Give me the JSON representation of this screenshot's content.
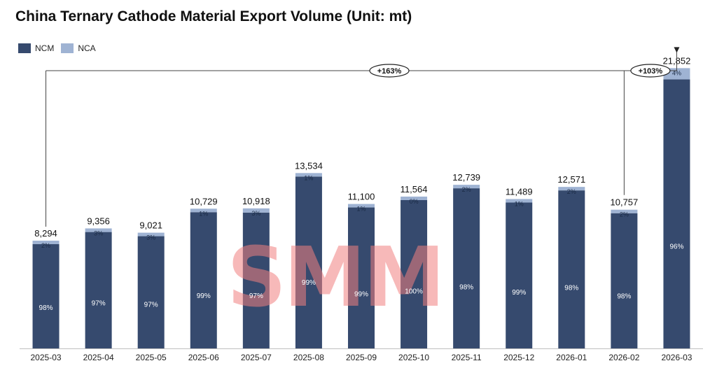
{
  "colors": {
    "ncm": "#364a6e",
    "nca": "#9fb3d3",
    "watermark": "#f08080"
  },
  "watermark": {
    "text": "SMM"
  },
  "chart_data": {
    "type": "bar",
    "stacked": true,
    "title": "China Ternary Cathode Material Export Volume (Unit: mt)",
    "legend_position": "top-left",
    "grid": false,
    "categories": [
      "2025-03",
      "2025-04",
      "2025-05",
      "2025-06",
      "2025-07",
      "2025-08",
      "2025-09",
      "2025-10",
      "2025-11",
      "2025-12",
      "2026-01",
      "2026-02",
      "2026-03"
    ],
    "totals": [
      8294,
      9356,
      9021,
      10729,
      10918,
      13534,
      11100,
      11564,
      12739,
      11489,
      12571,
      10757,
      21852
    ],
    "total_labels": [
      "8,294",
      "9,356",
      "9,021",
      "10,729",
      "10,918",
      "13,534",
      "11,100",
      "11,564",
      "12,739",
      "11,489",
      "12,571",
      "10,757",
      "21,852"
    ],
    "series": [
      {
        "name": "NCM",
        "share_labels": [
          "98%",
          "97%",
          "97%",
          "99%",
          "97%",
          "99%",
          "99%",
          "100%",
          "98%",
          "99%",
          "98%",
          "98%",
          "96%"
        ],
        "share": [
          98,
          97,
          97,
          99,
          97,
          99,
          99,
          100,
          98,
          99,
          98,
          98,
          96
        ]
      },
      {
        "name": "NCA",
        "share_labels": [
          "2%",
          "3%",
          "3%",
          "1%",
          "3%",
          "1%",
          "1%",
          "0%",
          "2%",
          "1%",
          "2%",
          "2%",
          "4%"
        ],
        "share": [
          2,
          3,
          3,
          1,
          3,
          1,
          1,
          0,
          2,
          1,
          2,
          2,
          4
        ]
      }
    ],
    "ylim": [
      0,
      24000
    ],
    "annotations": [
      {
        "label": "+163%",
        "from": "2025-03",
        "to": "2026-03"
      },
      {
        "label": "+103%",
        "from": "2026-02",
        "to": "2026-03"
      }
    ]
  }
}
